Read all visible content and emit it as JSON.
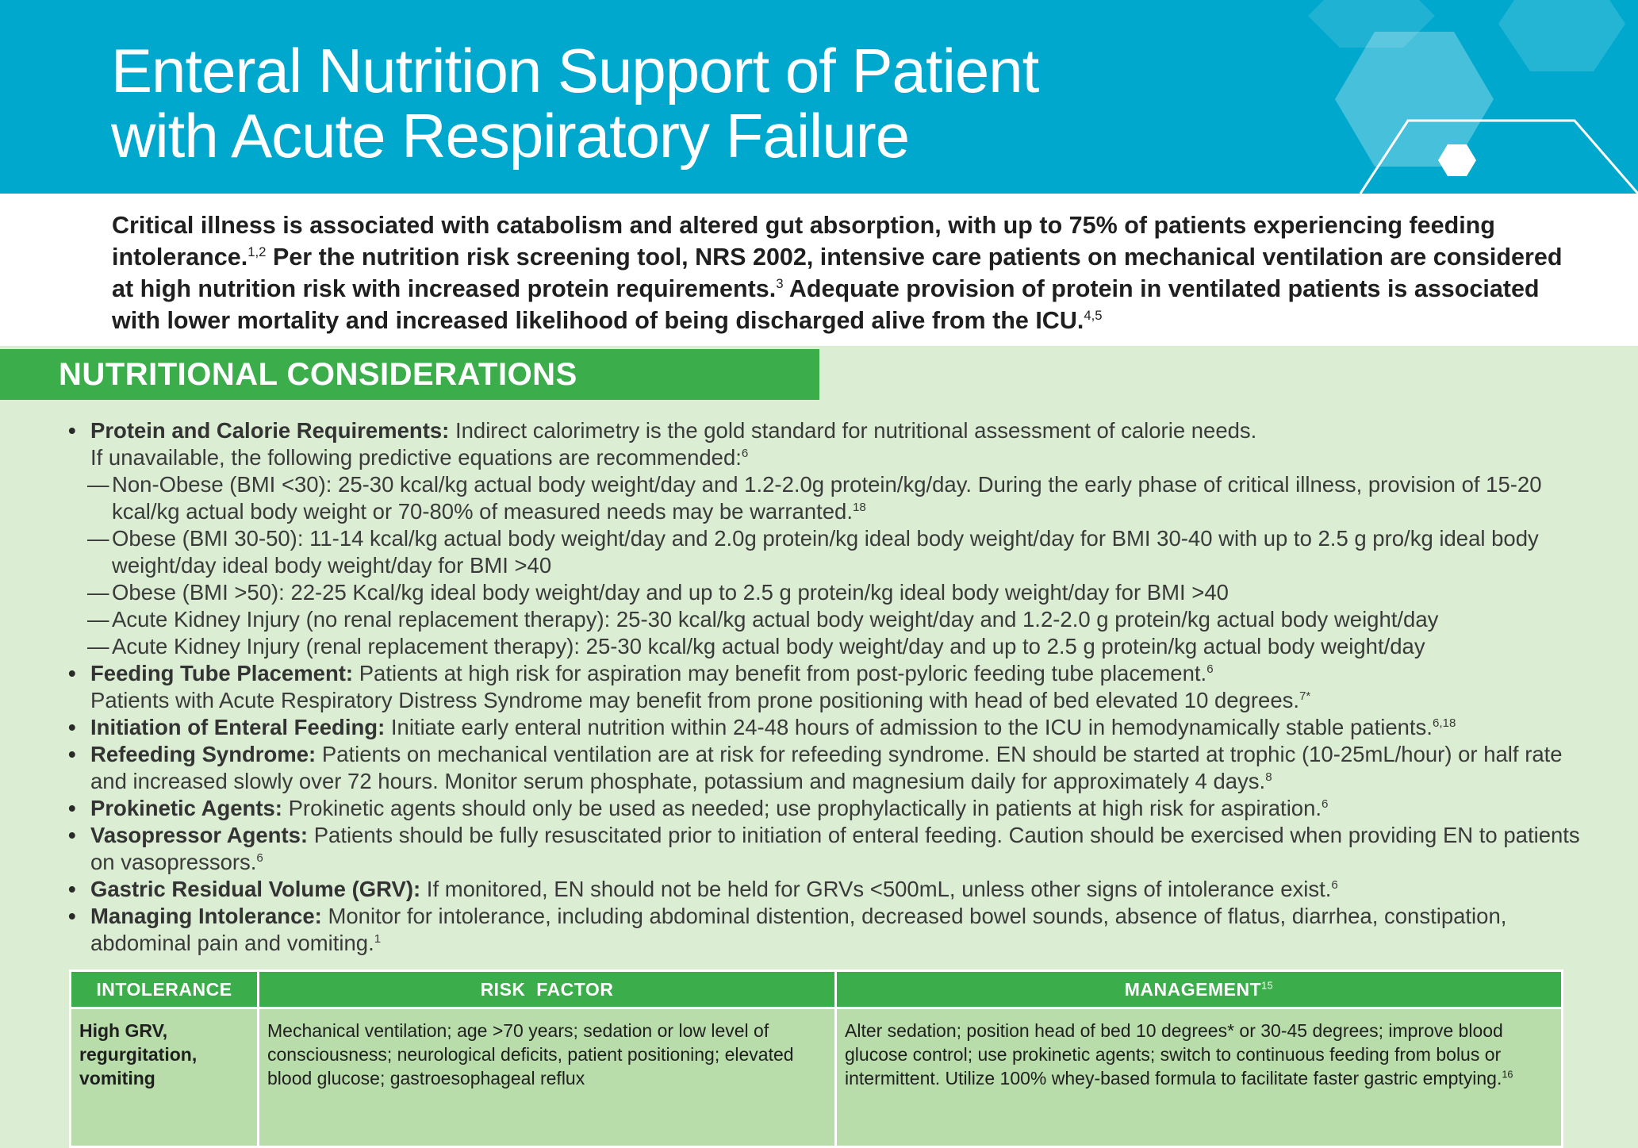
{
  "header": {
    "title_line1": "Enteral Nutrition Support of Patient",
    "title_line2": "with Acute Respiratory Failure",
    "colors": {
      "header_bg": "#00a8cd",
      "section_green": "#3cad4b",
      "body_bg": "#dbedd2",
      "table_cell": "#b9dcab"
    }
  },
  "intro": {
    "s1": "Critical illness is associated with catabolism and altered gut absorption, with up to 75% of patients experiencing feeding intolerance.",
    "r1": "1,2",
    "s2": " Per the nutrition risk screening tool, NRS 2002, intensive care patients on mechanical ventilation are considered at high nutrition risk with increased protein requirements.",
    "r2": "3",
    "s3": " Adequate provision of protein in ventilated patients is associated with lower mortality and increased likelihood of being discharged alive from the ICU.",
    "r3": "4,5"
  },
  "section": {
    "title": "NUTRITIONAL CONSIDERATIONS"
  },
  "items": {
    "i1": {
      "label": "Protein and Calorie Requirements:",
      "text": " Indirect calorimetry is the gold standard for nutritional assessment of calorie needs.",
      "text2": "If unavailable, the following predictive equations are recommended:",
      "ref": "6",
      "sub": [
        {
          "text": "Non-Obese (BMI <30): 25-30 kcal/kg actual body weight/day and 1.2-2.0g protein/kg/day. During the early phase of critical illness, provision of 15-20 kcal/kg actual body weight or 70-80% of measured needs may be warranted.",
          "ref": "18"
        },
        {
          "text": "Obese (BMI 30-50): 11-14 kcal/kg actual body weight/day and 2.0g protein/kg ideal body weight/day for BMI 30-40 with up to 2.5 g pro/kg ideal body weight/day ideal body weight/day for BMI >40"
        },
        {
          "text": "Obese (BMI >50): 22-25 Kcal/kg ideal body weight/day and up to 2.5 g protein/kg ideal body weight/day for BMI >40"
        },
        {
          "text": "Acute Kidney Injury (no renal replacement therapy): 25-30 kcal/kg actual body weight/day and 1.2-2.0 g protein/kg actual body weight/day"
        },
        {
          "text": "Acute Kidney Injury (renal replacement therapy): 25-30 kcal/kg actual body weight/day and up to 2.5 g protein/kg actual body weight/day"
        }
      ]
    },
    "i2": {
      "label": "Feeding Tube Placement:",
      "text": " Patients at high risk for aspiration may benefit from post-pyloric feeding tube placement.",
      "ref": "6",
      "text2": "Patients with Acute Respiratory Distress Syndrome may benefit from prone positioning with head of bed elevated 10 degrees.",
      "ref2": "7*"
    },
    "i3": {
      "label": "Initiation of Enteral Feeding:",
      "text": " Initiate early enteral nutrition within 24-48 hours of admission to the ICU in hemodynamically stable patients.",
      "ref": "6,18"
    },
    "i4": {
      "label": "Refeeding Syndrome:",
      "text": " Patients on mechanical ventilation are at risk for refeeding syndrome. EN should be started at trophic (10-25mL/hour) or half rate and increased slowly over 72 hours. Monitor serum phosphate, potassium and magnesium daily for approximately 4 days.",
      "ref": "8"
    },
    "i5": {
      "label": "Prokinetic Agents:",
      "text": " Prokinetic agents should only be used as needed; use prophylactically in patients at high risk for aspiration.",
      "ref": "6"
    },
    "i6": {
      "label": "Vasopressor Agents:",
      "text": " Patients should be fully resuscitated prior to initiation of enteral feeding. Caution should be exercised when providing EN to patients on vasopressors.",
      "ref": "6"
    },
    "i7": {
      "label": "Gastric Residual Volume (GRV):",
      "text": " If monitored, EN should not be held for GRVs <500mL, unless other signs of intolerance exist.",
      "ref": "6"
    },
    "i8": {
      "label": "Managing Intolerance:",
      "text": " Monitor for intolerance, including abdominal distention, decreased bowel sounds, absence of flatus, diarrhea, constipation, abdominal pain and vomiting.",
      "ref": "1"
    }
  },
  "table": {
    "headers": {
      "intolerance": "INTOLERANCE",
      "risk": "RISK  FACTOR",
      "management": "MANAGEMENT",
      "management_ref": "15"
    },
    "rows": [
      {
        "intolerance": "High GRV, regurgitation, vomiting",
        "risk": "Mechanical ventilation; age >70 years; sedation or low level of consciousness; neurological deficits, patient positioning; elevated blood glucose; gastroesophageal reflux",
        "management": "Alter sedation; position head of bed 10 degrees* or 30-45 degrees; improve blood glucose control; use prokinetic agents; switch to continuous feeding from bolus or intermittent. Utilize 100% whey-based formula to facilitate faster gastric emptying.",
        "management_ref": "16"
      }
    ]
  }
}
